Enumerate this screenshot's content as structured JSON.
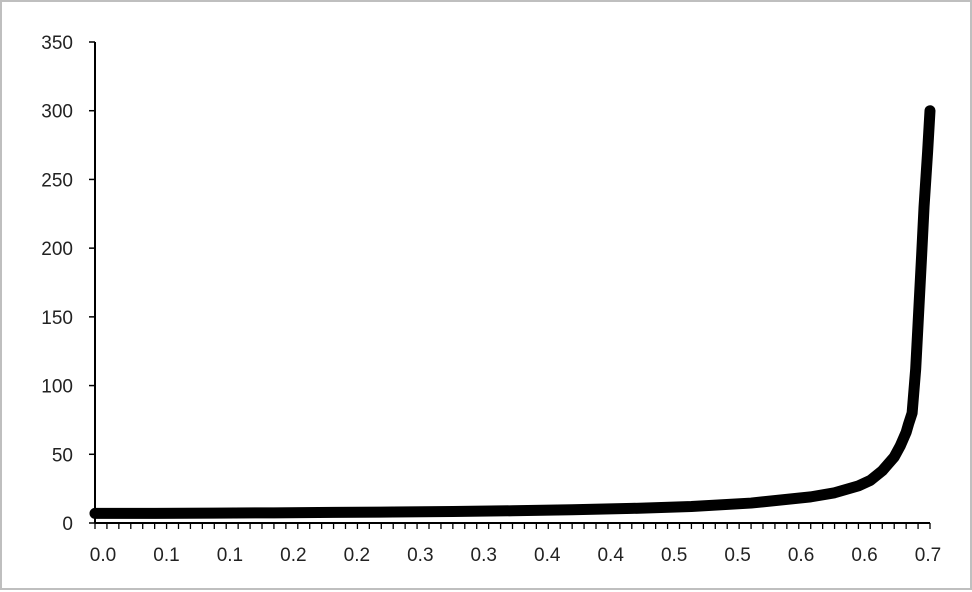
{
  "chart_data": {
    "type": "line",
    "title": "",
    "xlabel": "",
    "ylabel": "",
    "xlim": [
      0.0,
      0.7
    ],
    "ylim": [
      0,
      350
    ],
    "y_ticks": [
      0,
      50,
      100,
      150,
      200,
      250,
      300,
      350
    ],
    "y_tick_labels": [
      "0",
      "50",
      "100",
      "150",
      "200",
      "250",
      "300",
      "350"
    ],
    "x_tick_labels": [
      "0.0",
      "0.1",
      "0.1",
      "0.2",
      "0.2",
      "0.3",
      "0.3",
      "0.4",
      "0.4",
      "0.5",
      "0.5",
      "0.6",
      "0.6",
      "0.7"
    ],
    "grid": false,
    "legend": "none",
    "line_color": "#000000",
    "series": [
      {
        "x": [
          0.0,
          0.05,
          0.1,
          0.15,
          0.2,
          0.25,
          0.3,
          0.35,
          0.4,
          0.45,
          0.5,
          0.55,
          0.6,
          0.62,
          0.64,
          0.65,
          0.66,
          0.67,
          0.675,
          0.68,
          0.682,
          0.685,
          0.688,
          0.69,
          0.693,
          0.695,
          0.698,
          0.7
        ],
        "y": [
          7,
          7,
          7.2,
          7.4,
          7.7,
          8,
          8.4,
          8.9,
          9.6,
          10.6,
          12,
          14.5,
          19,
          22,
          27,
          31,
          38,
          48,
          56,
          66,
          72,
          80,
          112,
          145,
          195,
          230,
          270,
          300
        ]
      }
    ]
  }
}
